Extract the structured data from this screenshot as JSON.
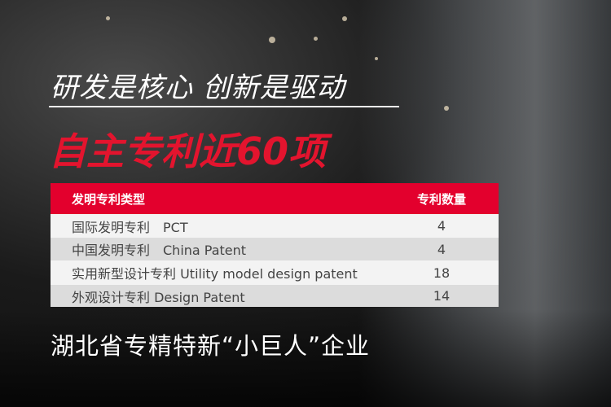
{
  "slogan": "研发是核心 创新是驱动",
  "headline": "自主专利近60项",
  "table": {
    "headers": [
      "发明专利类型",
      "专利数量"
    ],
    "rows": [
      {
        "type": "国际发明专利　PCT",
        "count": "4"
      },
      {
        "type": "中国发明专利　China Patent",
        "count": "4"
      },
      {
        "type": "实用新型设计专利  Utility model design patent",
        "count": "18"
      },
      {
        "type": "外观设计专利  Design Patent",
        "count": "14"
      }
    ]
  },
  "footer": "湖北省专精特新“小巨人”企业",
  "colors": {
    "accent": "#e3002d"
  }
}
